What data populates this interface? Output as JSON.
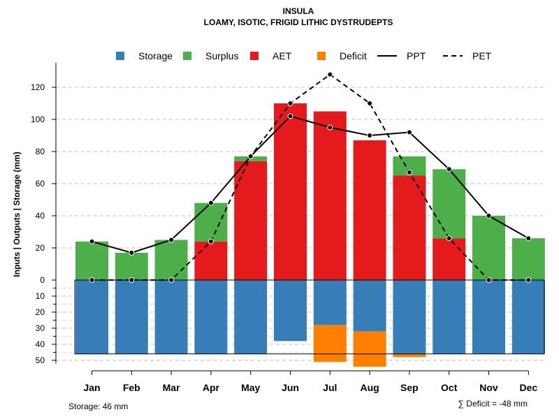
{
  "chart_data": {
    "type": "bar",
    "title": "INSULA",
    "subtitle": "LOAMY, ISOTIC, FRIGID LITHIC DYSTRUDEPTS",
    "ylabel": "Inputs | Outputs | Storage    (mm)",
    "categories": [
      "Jan",
      "Feb",
      "Mar",
      "Apr",
      "May",
      "Jun",
      "Jul",
      "Aug",
      "Sep",
      "Oct",
      "Nov",
      "Dec"
    ],
    "ylim": [
      -52,
      130
    ],
    "yticks_positive": [
      0,
      20,
      40,
      60,
      80,
      100,
      120
    ],
    "yticks_negative": [
      10,
      20,
      30,
      40,
      50
    ],
    "legend": [
      {
        "name": "Storage",
        "color": "#377EB8",
        "kind": "box"
      },
      {
        "name": "Surplus",
        "color": "#4DAF4A",
        "kind": "box"
      },
      {
        "name": "AET",
        "color": "#E41A1C",
        "kind": "box"
      },
      {
        "name": "Deficit",
        "color": "#FF7F00",
        "kind": "box"
      },
      {
        "name": "PPT",
        "color": "#000000",
        "kind": "solid"
      },
      {
        "name": "PET",
        "color": "#000000",
        "kind": "dashed"
      }
    ],
    "series": [
      {
        "name": "AET",
        "values": [
          0,
          0,
          0,
          24,
          74,
          110,
          105,
          87,
          65,
          26,
          0,
          0
        ]
      },
      {
        "name": "Surplus",
        "values": [
          24,
          17,
          25,
          24,
          3,
          0,
          0,
          0,
          12,
          43,
          40,
          26
        ]
      },
      {
        "name": "Storage",
        "values": [
          46,
          46,
          46,
          46,
          46,
          38,
          28,
          32,
          46,
          46,
          46,
          46
        ]
      },
      {
        "name": "Deficit",
        "values": [
          0,
          0,
          0,
          0,
          0,
          0,
          23,
          22,
          2,
          0,
          0,
          0
        ]
      },
      {
        "name": "PPT",
        "values": [
          24,
          17,
          25,
          48,
          77,
          102,
          95,
          90,
          92,
          69,
          40,
          26
        ]
      },
      {
        "name": "PET",
        "values": [
          0,
          0,
          0,
          24,
          77,
          110,
          128,
          110,
          67,
          26,
          0,
          0
        ]
      }
    ],
    "storage_capacity": 46,
    "storage_note": "Storage: 46 mm",
    "deficit_note": "∑ Deficit = -48 mm"
  }
}
